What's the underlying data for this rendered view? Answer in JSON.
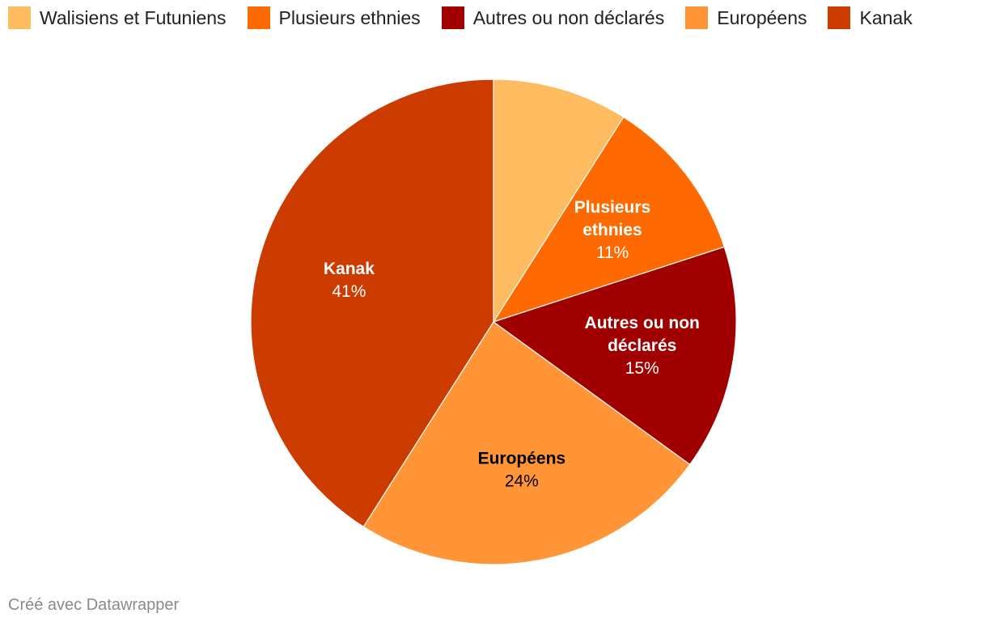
{
  "chart_data": {
    "type": "pie",
    "title": "",
    "slices": [
      {
        "name": "Walisiens et Futuniens",
        "value": 9,
        "color": "#ffbb5f",
        "label_lines": [],
        "value_label": "",
        "label_color": ""
      },
      {
        "name": "Plusieurs ethnies",
        "value": 11,
        "color": "#ff6a00",
        "label_lines": [
          "Plusieurs",
          "ethnies"
        ],
        "value_label": "11%",
        "label_color": "#ffffff"
      },
      {
        "name": "Autres ou non déclarés",
        "value": 15,
        "color": "#a00000",
        "label_lines": [
          "Autres ou non",
          "déclarés"
        ],
        "value_label": "15%",
        "label_color": "#ffffff"
      },
      {
        "name": "Européens",
        "value": 24,
        "color": "#ff9536",
        "label_lines": [
          "Européens"
        ],
        "value_label": "24%",
        "label_color": "#000000"
      },
      {
        "name": "Kanak",
        "value": 41,
        "color": "#cc3b00",
        "label_lines": [
          "Kanak"
        ],
        "value_label": "41%",
        "label_color": "#ffffff"
      }
    ],
    "legend": {
      "placement": "top-left",
      "items": [
        {
          "label": "Walisiens et Futuniens",
          "color": "#ffbb5f"
        },
        {
          "label": "Plusieurs ethnies",
          "color": "#ff6a00"
        },
        {
          "label": "Autres ou non déclarés",
          "color": "#a00000"
        },
        {
          "label": "Européens",
          "color": "#ff9536"
        },
        {
          "label": "Kanak",
          "color": "#cc3b00"
        }
      ]
    },
    "start_angle": "12 o'clock",
    "direction": "clockwise"
  },
  "footer": {
    "credit": "Créé avec Datawrapper"
  }
}
